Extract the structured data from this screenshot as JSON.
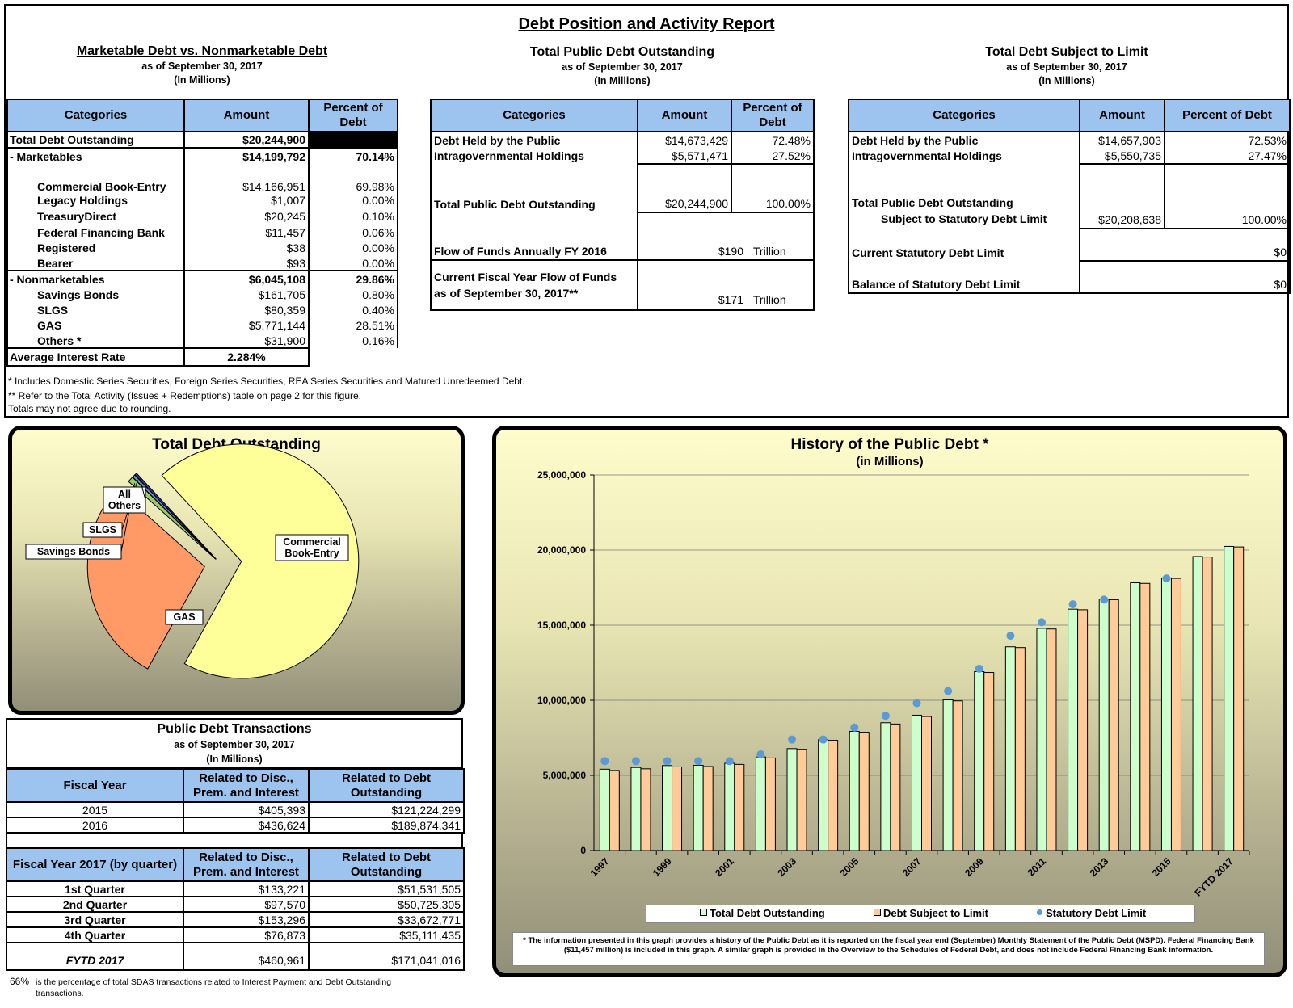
{
  "report_title": "Debt Position and Activity Report",
  "sections": {
    "marketable": {
      "title": "Marketable Debt vs. Nonmarketable Debt",
      "asof": "as of September 30, 2017",
      "units": "(In Millions)",
      "headers": [
        "Categories",
        "Amount",
        "Percent of Debt"
      ],
      "rows": [
        {
          "label": "Total Debt Outstanding",
          "amount": "$20,244,900",
          "pct": ""
        },
        {
          "label": "- Marketables",
          "amount": "$14,199,792",
          "pct": "70.14%"
        },
        {
          "label": "Commercial Book-Entry",
          "amount": "$14,166,951",
          "pct": "69.98%"
        },
        {
          "label": "Legacy Holdings",
          "amount": "$1,007",
          "pct": "0.00%"
        },
        {
          "label": "TreasuryDirect",
          "amount": "$20,245",
          "pct": "0.10%"
        },
        {
          "label": "Federal Financing Bank",
          "amount": "$11,457",
          "pct": "0.06%"
        },
        {
          "label": "Registered",
          "amount": "$38",
          "pct": "0.00%"
        },
        {
          "label": "Bearer",
          "amount": "$93",
          "pct": "0.00%"
        },
        {
          "label": "- Nonmarketables",
          "amount": "$6,045,108",
          "pct": "29.86%"
        },
        {
          "label": "Savings Bonds",
          "amount": "$161,705",
          "pct": "0.80%"
        },
        {
          "label": "SLGS",
          "amount": "$80,359",
          "pct": "0.40%"
        },
        {
          "label": "GAS",
          "amount": "$5,771,144",
          "pct": "28.51%"
        },
        {
          "label": "Others *",
          "amount": "$31,900",
          "pct": "0.16%"
        },
        {
          "label": "Average Interest Rate",
          "amount": "2.284%",
          "pct": ""
        }
      ]
    },
    "public": {
      "title": "Total Public Debt Outstanding",
      "asof": "as of September 30, 2017",
      "units": "(In Millions)",
      "headers": [
        "Categories",
        "Amount",
        "Percent of Debt"
      ],
      "rows": [
        {
          "label": "Debt Held by the Public",
          "amount": "$14,673,429",
          "pct": "72.48%"
        },
        {
          "label": "Intragovernmental Holdings",
          "amount": "$5,571,471",
          "pct": "27.52%"
        },
        {
          "label": "Total Public Debt Outstanding",
          "amount": "$20,244,900",
          "pct": "100.00%"
        },
        {
          "label": "Flow of Funds Annually FY 2016",
          "amount": "$190",
          "unit": "Trillion"
        },
        {
          "label": "Current Fiscal Year Flow of Funds",
          "label2": "as of September 30, 2017**",
          "amount": "$171",
          "unit": "Trillion"
        }
      ]
    },
    "limit": {
      "title": "Total Debt Subject to Limit",
      "asof": "as of September 30, 2017",
      "units": "(In Millions)",
      "headers": [
        "Categories",
        "Amount",
        "Percent of Debt"
      ],
      "rows": [
        {
          "label": "Debt Held by the Public",
          "amount": "$14,657,903",
          "pct": "72.53%"
        },
        {
          "label": "Intragovernmental Holdings",
          "amount": "$5,550,735",
          "pct": "27.47%"
        },
        {
          "label": "Total Public Debt Outstanding",
          "label2": "Subject to Statutory Debt Limit",
          "amount": "$20,208,638",
          "pct": "100.00%"
        },
        {
          "label": "Current Statutory Debt Limit",
          "amount": "$0"
        },
        {
          "label": "Balance of Statutory Debt Limit",
          "amount": "$0"
        }
      ]
    }
  },
  "footnotes": [
    "* Includes Domestic Series Securities, Foreign Series Securities, REA Series Securities and Matured Unredeemed Debt.",
    "** Refer to the Total Activity (Issues + Redemptions) table on page 2 for this figure.",
    "Totals may not agree due to rounding."
  ],
  "transactions": {
    "title": "Public Debt Transactions",
    "asof": "as of September 30, 2017",
    "units": "(In Millions)",
    "headers1": [
      "Fiscal Year",
      "Related to Disc., Prem. and Interest",
      "Related to Debt Outstanding"
    ],
    "years": [
      {
        "label": "2015",
        "disc": "$405,393",
        "debt": "$121,224,299"
      },
      {
        "label": "2016",
        "disc": "$436,624",
        "debt": "$189,874,341"
      }
    ],
    "headers2": [
      "Fiscal Year 2017 (by quarter)",
      "Related to Disc., Prem. and Interest",
      "Related to Debt Outstanding"
    ],
    "quarters": [
      {
        "label": "1st Quarter",
        "disc": "$133,221",
        "debt": "$51,531,505"
      },
      {
        "label": "2nd Quarter",
        "disc": "$97,570",
        "debt": "$50,725,305"
      },
      {
        "label": "3rd Quarter",
        "disc": "$153,296",
        "debt": "$33,672,771"
      },
      {
        "label": "4th Quarter",
        "disc": "$76,873",
        "debt": "$35,111,435"
      }
    ],
    "total": {
      "label": "FYTD 2017",
      "disc": "$460,961",
      "debt": "$171,041,016"
    },
    "note_pct": "66%",
    "note": "is the percentage of total SDAS transactions related to Interest Payment and Debt Outstanding transactions."
  },
  "chart_data": [
    {
      "type": "pie",
      "title": "Total Debt Outstanding",
      "categories": [
        "Commercial Book-Entry",
        "GAS",
        "Savings Bonds",
        "SLGS",
        "All Others"
      ],
      "values": [
        14166951,
        5771144,
        161705,
        80359,
        64740
      ],
      "colors": [
        "#ffff99",
        "#ff9966",
        "#99cc66",
        "#6699cc",
        "#333399"
      ]
    },
    {
      "type": "bar",
      "title": "History of the Public Debt *",
      "subtitle": "(in Millions)",
      "categories": [
        "1997",
        "1998",
        "1999",
        "2000",
        "2001",
        "2002",
        "2003",
        "2004",
        "2005",
        "2006",
        "2007",
        "2008",
        "2009",
        "2010",
        "2011",
        "2012",
        "2013",
        "2014",
        "2015",
        "2016",
        "FYTD 2017"
      ],
      "tick_labels": [
        "1997",
        "",
        "1999",
        "",
        "2001",
        "",
        "2003",
        "",
        "2005",
        "",
        "2007",
        "",
        "2009",
        "",
        "2011",
        "",
        "2013",
        "",
        "2015",
        "",
        "FYTD 2017"
      ],
      "ylim": [
        0,
        25000000
      ],
      "yticks": [
        "0",
        "5,000,000",
        "10,000,000",
        "15,000,000",
        "20,000,000",
        "25,000,000"
      ],
      "series": [
        {
          "name": "Total Debt Outstanding",
          "color": "#ccffcc",
          "values": [
            5413000,
            5526000,
            5656000,
            5674000,
            5807000,
            6228000,
            6783000,
            7379000,
            7933000,
            8507000,
            9008000,
            10025000,
            11910000,
            13562000,
            14790000,
            16066000,
            16738000,
            17824000,
            18151000,
            19573000,
            20245000
          ]
        },
        {
          "name": "Debt Subject to Limit",
          "color": "#ffcc99",
          "values": [
            5329000,
            5439000,
            5567000,
            5592000,
            5732000,
            6161000,
            6737000,
            7333000,
            7871000,
            8420000,
            8921000,
            9960000,
            11853000,
            13511000,
            14746000,
            16027000,
            16699000,
            17781000,
            18113000,
            19538000,
            20209000
          ]
        },
        {
          "name": "Statutory Debt Limit",
          "color": "#5b9bd5",
          "values": [
            5950000,
            5950000,
            5950000,
            5950000,
            5950000,
            6400000,
            7384000,
            7384000,
            8184000,
            8965000,
            9815000,
            10615000,
            12104000,
            14294000,
            15194000,
            16394000,
            16699000,
            null,
            18113000,
            null,
            null
          ]
        }
      ],
      "footnote": "* The information presented in this graph provides a history of the Public Debt as it is reported on the fiscal year end (September) Monthly Statement of the Public Debt (MSPD). Federal Financing Bank ($11,457 million) is included in this graph. A similar graph is provided in the Overview to the Schedules of Federal Debt, and does not include Federal Financing Bank information."
    }
  ]
}
